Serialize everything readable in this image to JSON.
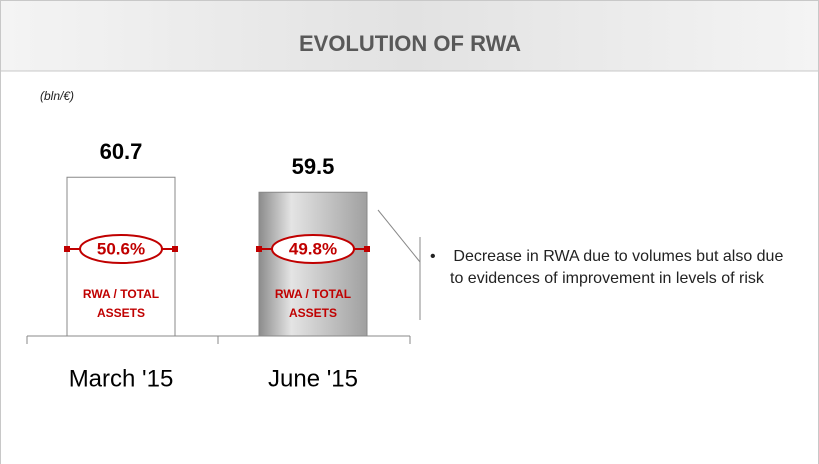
{
  "chart_data": {
    "type": "bar",
    "title": "EVOLUTION OF RWA",
    "unit": "(bln/€)",
    "categories": [
      "March '15",
      "June '15"
    ],
    "values": [
      60.7,
      59.5
    ],
    "colors": [
      "#ffffff",
      "#b8b8b8"
    ],
    "ylim": [
      48,
      61
    ],
    "ratio": {
      "name": "RWA / TOTAL ASSETS",
      "values": [
        50.6,
        49.8
      ],
      "value_labels": [
        "50.6%",
        "49.8%"
      ],
      "color": "#c00000"
    },
    "note": "Decrease in RWA due to volumes but  also due to evidences of improvement in levels of risk"
  }
}
